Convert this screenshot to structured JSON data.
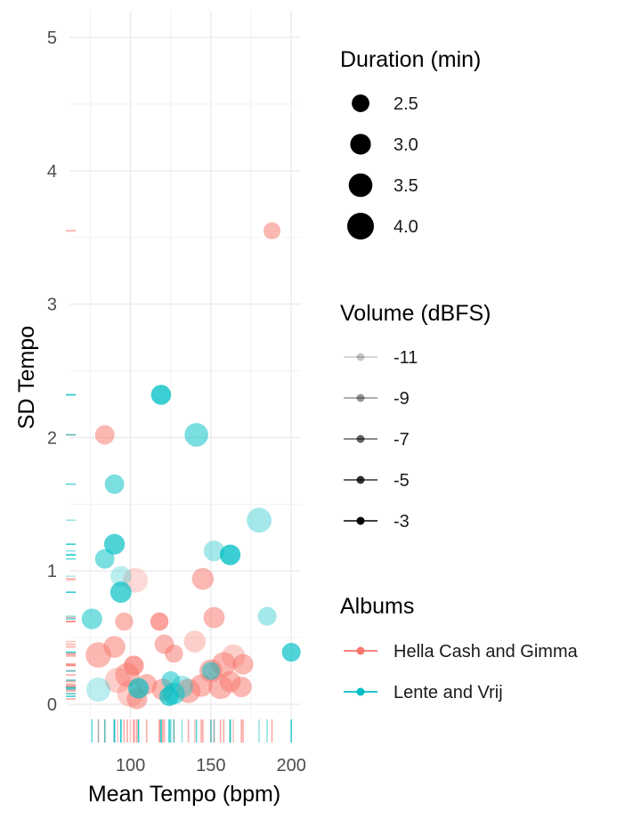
{
  "chart_data": {
    "type": "scatter",
    "xlabel": "Mean Tempo (bpm)",
    "ylabel": "SD Tempo",
    "xlim": [
      62,
      206
    ],
    "ylim": [
      -0.1,
      5.2
    ],
    "x_ticks": [
      100,
      150,
      200
    ],
    "y_ticks": [
      0,
      1,
      2,
      3,
      4,
      5
    ],
    "grid": true,
    "rug": true,
    "legends": {
      "size": {
        "title": "Duration (min)",
        "entries": [
          {
            "label": "2.5",
            "value": 2.5
          },
          {
            "label": "3.0",
            "value": 3.0
          },
          {
            "label": "3.5",
            "value": 3.5
          },
          {
            "label": "4.0",
            "value": 4.0
          }
        ]
      },
      "alpha": {
        "title": "Volume (dBFS)",
        "entries": [
          {
            "label": "-11",
            "value": -11
          },
          {
            "label": "-9",
            "value": -9
          },
          {
            "label": "-7",
            "value": -7
          },
          {
            "label": "-5",
            "value": -5
          },
          {
            "label": "-3",
            "value": -3
          }
        ]
      },
      "color": {
        "title": "Albums",
        "entries": [
          {
            "label": "Hella Cash and Gimma",
            "color": "#F8766D"
          },
          {
            "label": "Lente and Vrij",
            "color": "#00BFC4"
          }
        ]
      }
    },
    "series": [
      {
        "name": "Hella Cash and Gimma",
        "color": "#F8766D",
        "points": [
          {
            "x": 188,
            "y": 3.55,
            "duration": 2.4,
            "volume": -7
          },
          {
            "x": 84,
            "y": 2.02,
            "duration": 2.8,
            "volume": -7
          },
          {
            "x": 145,
            "y": 0.94,
            "duration": 3.2,
            "volume": -7
          },
          {
            "x": 103,
            "y": 0.93,
            "duration": 3.7,
            "volume": -10
          },
          {
            "x": 152,
            "y": 0.65,
            "duration": 3.1,
            "volume": -7
          },
          {
            "x": 118,
            "y": 0.62,
            "duration": 2.6,
            "volume": -5
          },
          {
            "x": 96,
            "y": 0.62,
            "duration": 2.6,
            "volume": -7
          },
          {
            "x": 140,
            "y": 0.47,
            "duration": 3.2,
            "volume": -9
          },
          {
            "x": 121,
            "y": 0.45,
            "duration": 2.8,
            "volume": -7
          },
          {
            "x": 90,
            "y": 0.43,
            "duration": 3.2,
            "volume": -7
          },
          {
            "x": 127,
            "y": 0.38,
            "duration": 2.6,
            "volume": -7
          },
          {
            "x": 80,
            "y": 0.37,
            "duration": 3.8,
            "volume": -7
          },
          {
            "x": 164,
            "y": 0.36,
            "duration": 3.5,
            "volume": -9
          },
          {
            "x": 170,
            "y": 0.3,
            "duration": 3.0,
            "volume": -7
          },
          {
            "x": 158,
            "y": 0.3,
            "duration": 3.6,
            "volume": -7
          },
          {
            "x": 102,
            "y": 0.29,
            "duration": 2.9,
            "volume": -5
          },
          {
            "x": 150,
            "y": 0.25,
            "duration": 3.4,
            "volume": -7
          },
          {
            "x": 98,
            "y": 0.22,
            "duration": 3.6,
            "volume": -7
          },
          {
            "x": 92,
            "y": 0.18,
            "duration": 3.8,
            "volume": -9
          },
          {
            "x": 162,
            "y": 0.17,
            "duration": 3.1,
            "volume": -7
          },
          {
            "x": 110,
            "y": 0.15,
            "duration": 3.0,
            "volume": -7
          },
          {
            "x": 144,
            "y": 0.14,
            "duration": 3.3,
            "volume": -7
          },
          {
            "x": 156,
            "y": 0.13,
            "duration": 3.6,
            "volume": -7
          },
          {
            "x": 169,
            "y": 0.13,
            "duration": 3.0,
            "volume": -7
          },
          {
            "x": 120,
            "y": 0.11,
            "duration": 3.2,
            "volume": -7
          },
          {
            "x": 136,
            "y": 0.1,
            "duration": 3.6,
            "volume": -7
          },
          {
            "x": 100,
            "y": 0.08,
            "duration": 4.0,
            "volume": -9
          },
          {
            "x": 104,
            "y": 0.04,
            "duration": 3.0,
            "volume": -7
          }
        ]
      },
      {
        "name": "Lente and Vrij",
        "color": "#00BFC4",
        "points": [
          {
            "x": 119,
            "y": 2.32,
            "duration": 2.9,
            "volume": -4
          },
          {
            "x": 141,
            "y": 2.02,
            "duration": 3.5,
            "volume": -7
          },
          {
            "x": 90,
            "y": 1.65,
            "duration": 2.8,
            "volume": -7
          },
          {
            "x": 180,
            "y": 1.38,
            "duration": 3.7,
            "volume": -9
          },
          {
            "x": 90,
            "y": 1.2,
            "duration": 3.0,
            "volume": -5
          },
          {
            "x": 152,
            "y": 1.15,
            "duration": 3.0,
            "volume": -9
          },
          {
            "x": 162,
            "y": 1.12,
            "duration": 3.0,
            "volume": -4
          },
          {
            "x": 84,
            "y": 1.09,
            "duration": 2.8,
            "volume": -7
          },
          {
            "x": 94,
            "y": 0.96,
            "duration": 3.0,
            "volume": -10
          },
          {
            "x": 94,
            "y": 0.84,
            "duration": 3.1,
            "volume": -5
          },
          {
            "x": 185,
            "y": 0.66,
            "duration": 2.7,
            "volume": -9
          },
          {
            "x": 76,
            "y": 0.64,
            "duration": 3.0,
            "volume": -7
          },
          {
            "x": 200,
            "y": 0.39,
            "duration": 2.7,
            "volume": -5
          },
          {
            "x": 150,
            "y": 0.25,
            "duration": 2.6,
            "volume": -7
          },
          {
            "x": 125,
            "y": 0.18,
            "duration": 2.6,
            "volume": -7
          },
          {
            "x": 132,
            "y": 0.13,
            "duration": 3.3,
            "volume": -9
          },
          {
            "x": 105,
            "y": 0.12,
            "duration": 3.0,
            "volume": -5
          },
          {
            "x": 80,
            "y": 0.11,
            "duration": 3.6,
            "volume": -10
          },
          {
            "x": 127,
            "y": 0.08,
            "duration": 3.2,
            "volume": -7
          },
          {
            "x": 124,
            "y": 0.06,
            "duration": 2.8,
            "volume": -5
          }
        ]
      }
    ]
  }
}
